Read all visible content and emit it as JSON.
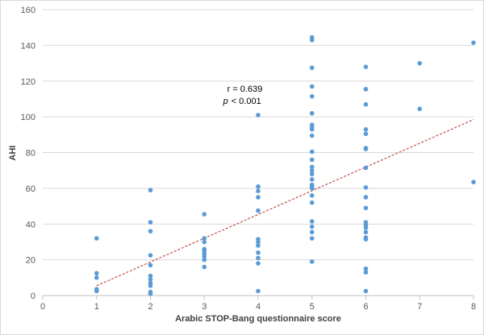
{
  "chart_data": {
    "type": "scatter",
    "xlabel": "Arabic STOP-Bang questionnaire score",
    "ylabel": "AHI",
    "xlim": [
      0,
      8
    ],
    "ylim": [
      0,
      160
    ],
    "x_ticks": [
      "0",
      "1",
      "2",
      "3",
      "4",
      "5",
      "6",
      "7",
      "8"
    ],
    "y_ticks": [
      "0",
      "20",
      "40",
      "60",
      "80",
      "100",
      "120",
      "140",
      "160"
    ],
    "grid": "horizontal",
    "annotation": {
      "r_line": "r = 0.639",
      "p_italic": "p",
      "p_rest": "< 0.001",
      "x": 3.35,
      "y": 114
    },
    "point_color": "#5b9bd5",
    "trendline_color": "#c0504d",
    "trendline": {
      "x": [
        1,
        8
      ],
      "y": [
        5.5,
        98.5
      ]
    },
    "points": [
      [
        1,
        32
      ],
      [
        1,
        12.5
      ],
      [
        1,
        10
      ],
      [
        1,
        3.5
      ],
      [
        1,
        2.5
      ],
      [
        2,
        59
      ],
      [
        2,
        41
      ],
      [
        2,
        36
      ],
      [
        2,
        22.5
      ],
      [
        2,
        17
      ],
      [
        2,
        11
      ],
      [
        2,
        9
      ],
      [
        2,
        7
      ],
      [
        2,
        5.5
      ],
      [
        2,
        2
      ],
      [
        2,
        1
      ],
      [
        3,
        45.5
      ],
      [
        3,
        32
      ],
      [
        3,
        30
      ],
      [
        3,
        26
      ],
      [
        3,
        25
      ],
      [
        3,
        23.5
      ],
      [
        3,
        22
      ],
      [
        3,
        20
      ],
      [
        3,
        16
      ],
      [
        4,
        101
      ],
      [
        4,
        61
      ],
      [
        4,
        58.5
      ],
      [
        4,
        55
      ],
      [
        4,
        47.5
      ],
      [
        4,
        31.5
      ],
      [
        4,
        30
      ],
      [
        4,
        28
      ],
      [
        4,
        24
      ],
      [
        4,
        21
      ],
      [
        4,
        18
      ],
      [
        4,
        2.5
      ],
      [
        5,
        144.5
      ],
      [
        5,
        143
      ],
      [
        5,
        127.5
      ],
      [
        5,
        117
      ],
      [
        5,
        111.5
      ],
      [
        5,
        102
      ],
      [
        5,
        95.5
      ],
      [
        5,
        94
      ],
      [
        5,
        93
      ],
      [
        5,
        89.5
      ],
      [
        5,
        80.5
      ],
      [
        5,
        76
      ],
      [
        5,
        72
      ],
      [
        5,
        70
      ],
      [
        5,
        68
      ],
      [
        5,
        65
      ],
      [
        5,
        62
      ],
      [
        5,
        61
      ],
      [
        5,
        60
      ],
      [
        5,
        56
      ],
      [
        5,
        52
      ],
      [
        5,
        41.5
      ],
      [
        5,
        38.5
      ],
      [
        5,
        35.5
      ],
      [
        5,
        32
      ],
      [
        5,
        19
      ],
      [
        6,
        128
      ],
      [
        6,
        115.5
      ],
      [
        6,
        107
      ],
      [
        6,
        93
      ],
      [
        6,
        90.5
      ],
      [
        6,
        82.5
      ],
      [
        6,
        82
      ],
      [
        6,
        71.5
      ],
      [
        6,
        60.5
      ],
      [
        6,
        55
      ],
      [
        6,
        49
      ],
      [
        6,
        41
      ],
      [
        6,
        39.5
      ],
      [
        6,
        38
      ],
      [
        6,
        35.5
      ],
      [
        6,
        32.5
      ],
      [
        6,
        31.5
      ],
      [
        6,
        15
      ],
      [
        6,
        13
      ],
      [
        6,
        2.5
      ],
      [
        7,
        130
      ],
      [
        7,
        104.5
      ],
      [
        8,
        141.5
      ],
      [
        8,
        63.5
      ]
    ]
  }
}
